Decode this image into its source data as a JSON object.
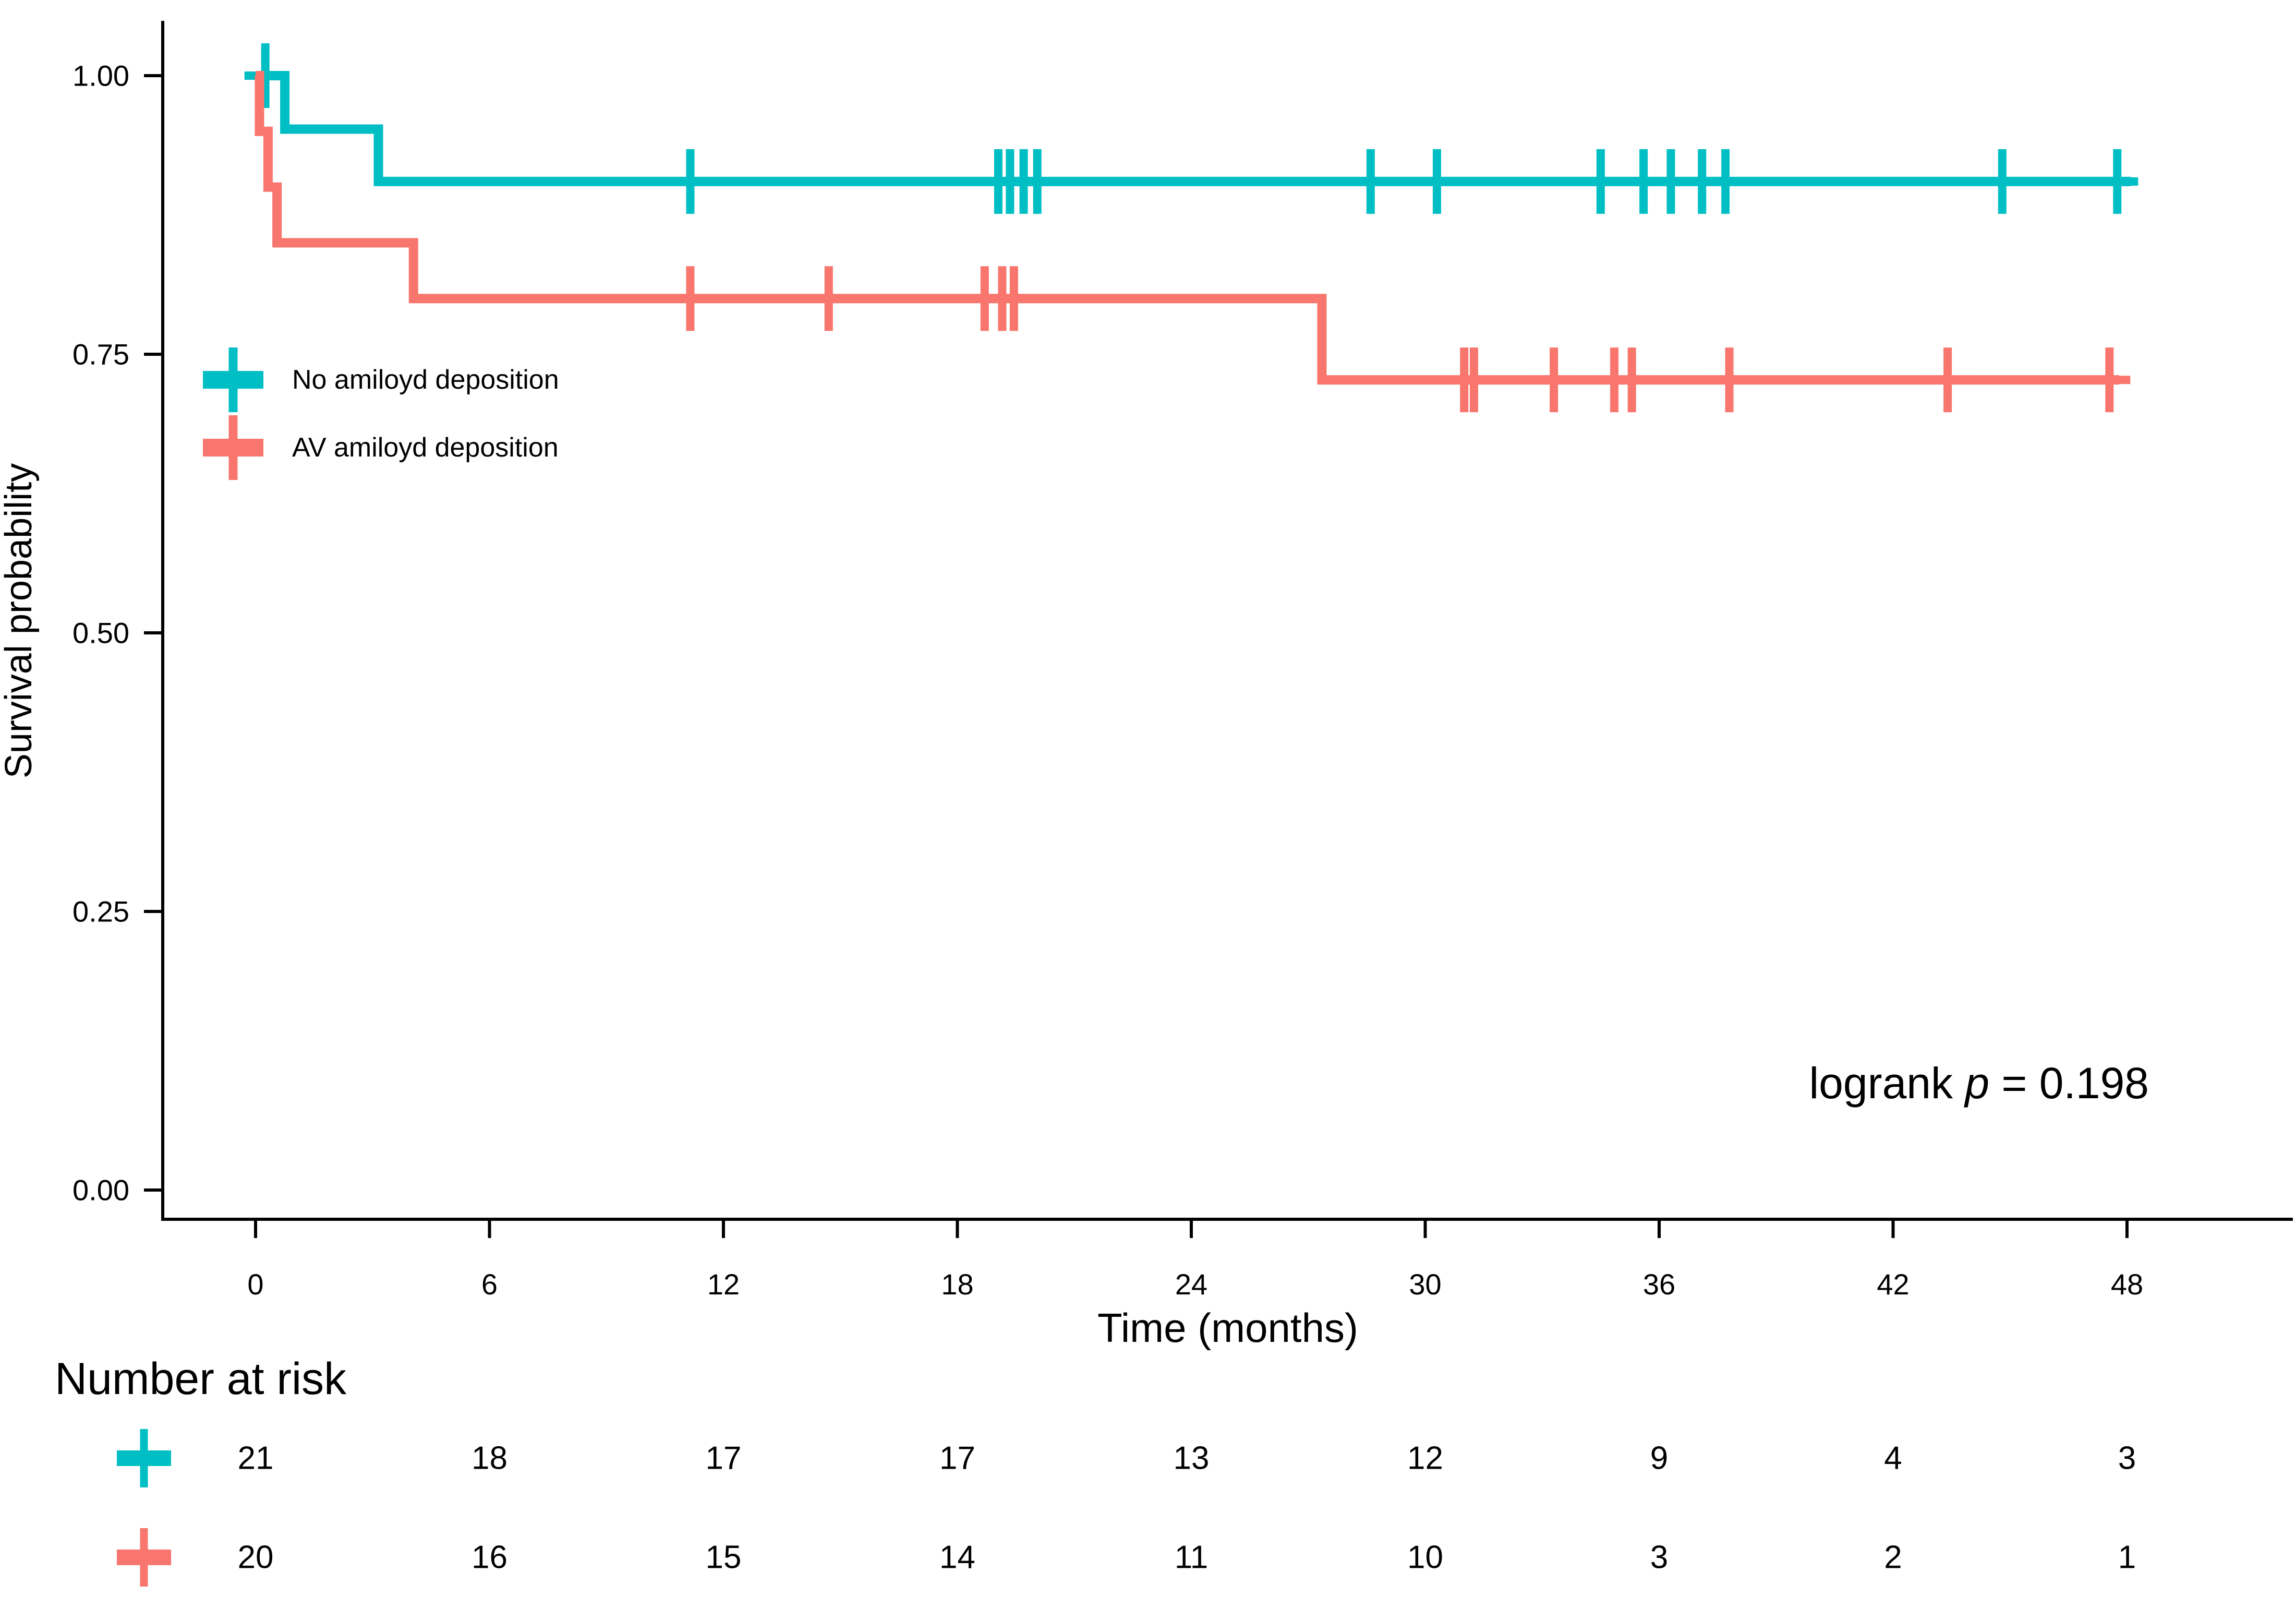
{
  "figure": {
    "background": "#ffffff",
    "axis_color": "#000000",
    "text_color": "#000000"
  },
  "chart_data": {
    "type": "line",
    "subtype": "kaplan-meier-step",
    "title": "",
    "xlabel": "Time (months)",
    "ylabel": "Survival probability",
    "xlim": [
      0,
      48
    ],
    "ylim": [
      0.0,
      1.0
    ],
    "x_ticks": [
      0,
      6,
      12,
      18,
      24,
      30,
      36,
      42,
      48
    ],
    "y_ticks": [
      1.0,
      0.75,
      0.5,
      0.25,
      0.0
    ],
    "y_tick_labels": [
      "1.00",
      "0.75",
      "0.50",
      "0.25",
      "0.00"
    ],
    "grid": false,
    "legend_position": "inside-upper-left",
    "annotation": {
      "full": "logrank p = 0.198",
      "prefix": "logrank ",
      "italic": "p",
      "suffix": " = 0.198"
    },
    "series": [
      {
        "name": "No amiloyd deposition",
        "color": "#00BFC4",
        "n_start": 21,
        "steps": [
          [
            0,
            1.0
          ],
          [
            0.75,
            0.952
          ],
          [
            3.15,
            0.905
          ]
        ],
        "end_time": 48.1,
        "censors": [
          [
            0.25,
            1.0
          ],
          [
            11.15,
            0.905
          ],
          [
            19.05,
            0.905
          ],
          [
            19.35,
            0.905
          ],
          [
            19.7,
            0.905
          ],
          [
            20.05,
            0.905
          ],
          [
            28.6,
            0.905
          ],
          [
            30.3,
            0.905
          ],
          [
            34.5,
            0.905
          ],
          [
            35.6,
            0.905
          ],
          [
            36.3,
            0.905
          ],
          [
            37.1,
            0.905
          ],
          [
            37.7,
            0.905
          ],
          [
            44.8,
            0.905
          ],
          [
            47.75,
            0.905
          ]
        ]
      },
      {
        "name": "AV amiloyd deposition",
        "color": "#F8766D",
        "n_start": 20,
        "steps": [
          [
            0,
            1.0
          ],
          [
            0.1,
            0.95
          ],
          [
            0.32,
            0.9
          ],
          [
            0.55,
            0.85
          ],
          [
            4.05,
            0.8
          ],
          [
            27.35,
            0.727
          ]
        ],
        "end_time": 47.8,
        "censors": [
          [
            11.15,
            0.8
          ],
          [
            14.7,
            0.8
          ],
          [
            18.7,
            0.8
          ],
          [
            19.15,
            0.8
          ],
          [
            19.45,
            0.8
          ],
          [
            31.0,
            0.727
          ],
          [
            31.25,
            0.727
          ],
          [
            33.3,
            0.727
          ],
          [
            34.85,
            0.727
          ],
          [
            35.3,
            0.727
          ],
          [
            37.8,
            0.727
          ],
          [
            43.4,
            0.727
          ],
          [
            47.55,
            0.727
          ]
        ]
      }
    ],
    "risk_table": {
      "title": "Number at risk",
      "times": [
        0,
        6,
        12,
        18,
        24,
        30,
        36,
        42,
        48
      ],
      "rows": [
        {
          "name": "No amiloyd deposition",
          "color": "#00BFC4",
          "values": [
            21,
            18,
            17,
            17,
            13,
            12,
            9,
            4,
            3
          ]
        },
        {
          "name": "AV amiloyd deposition",
          "color": "#F8766D",
          "values": [
            20,
            16,
            15,
            14,
            11,
            10,
            3,
            2,
            1
          ]
        }
      ]
    }
  }
}
